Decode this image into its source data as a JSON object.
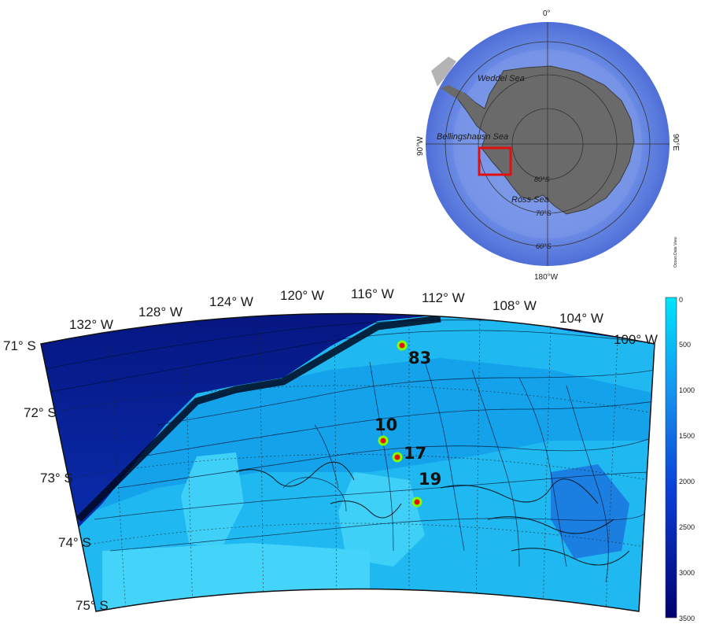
{
  "inset_map": {
    "labels": {
      "top": "0°",
      "bottom": "180°W",
      "left": "90°W",
      "right": "90°E",
      "weddell": "Weddel Sea",
      "bellingshausen": "Bellingshausn Sea",
      "ross": "Ross Sea",
      "lat80": "80°S",
      "lat70": "70°S",
      "lat60": "60°S",
      "credit": "Ocean Data View"
    },
    "colors": {
      "ocean": "#6f8fe0",
      "land": "#6b6b6b",
      "box": "#e01010"
    }
  },
  "main_map": {
    "lon_labels": [
      "132° W",
      "128° W",
      "124° W",
      "120° W",
      "116° W",
      "112° W",
      "108° W",
      "104° W",
      "100° W"
    ],
    "lat_labels": [
      "71° S",
      "72° S",
      "73° S",
      "74° S",
      "75° S"
    ],
    "stations": [
      {
        "id": "83"
      },
      {
        "id": "10"
      },
      {
        "id": "17"
      },
      {
        "id": "19"
      }
    ],
    "colorbar": {
      "ticks": [
        "0",
        "500",
        "1000",
        "1500",
        "2000",
        "2500",
        "3000",
        "3500"
      ],
      "colors": [
        "#00e5ff",
        "#0a55d8",
        "#000070"
      ]
    }
  }
}
